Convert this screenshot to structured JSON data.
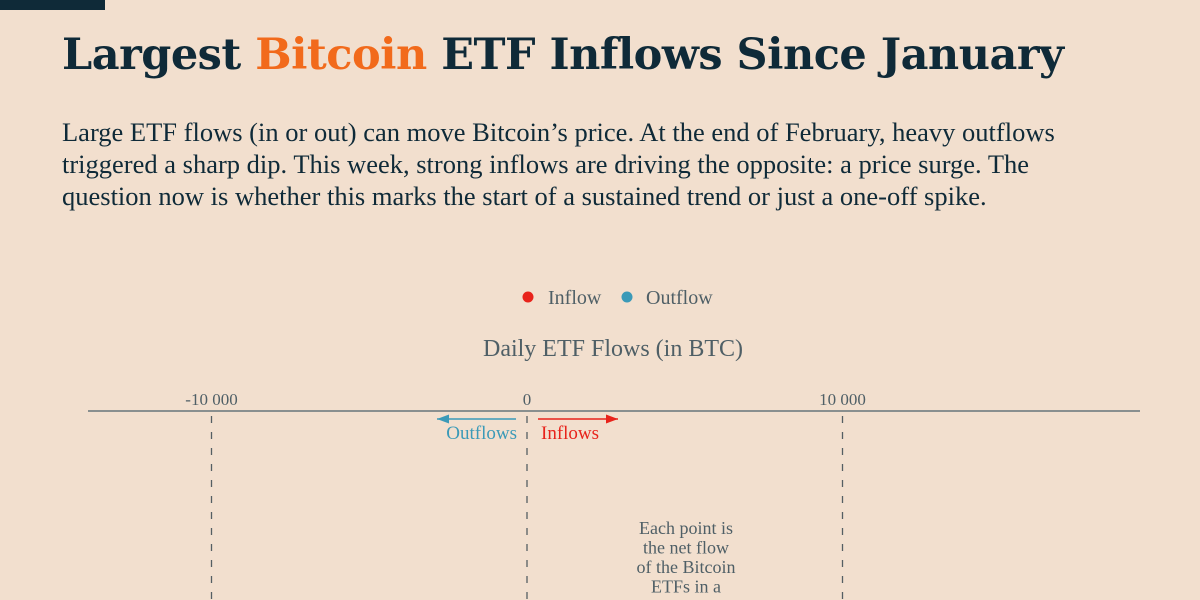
{
  "header": {
    "title_before": "Largest ",
    "title_accent": "Bitcoin",
    "title_after": " ETF Inflows Since January",
    "description": "Large ETF flows (in or out) can move Bitcoin’s price. At the end of February, heavy outflows triggered a sharp dip. This week, strong inflows are driving the opposite: a price surge. The question now is whether this marks the start of a sustained trend or just a one-off spike."
  },
  "colors": {
    "inflow": "#e8231b",
    "outflow": "#3b9ab8",
    "accent": "#f26a1b",
    "text": "#0f2a38"
  },
  "chart_data": {
    "type": "scatter",
    "title": "Daily ETF Flows (in BTC)",
    "legend": [
      {
        "label": "Inflow",
        "color": "#e8231b"
      },
      {
        "label": "Outflow",
        "color": "#3b9ab8"
      }
    ],
    "legend_placement": "top-center",
    "x_ticks": [
      {
        "value": -10000,
        "label": "-10 000"
      },
      {
        "value": 0,
        "label": "0"
      },
      {
        "value": 10000,
        "label": "10 000"
      }
    ],
    "xlim": [
      -14000,
      19500
    ],
    "direction_labels": {
      "outflows": "Outflows",
      "inflows": "Inflows"
    },
    "annotation_lines": [
      "Each point is",
      "the net flow",
      "of the Bitcoin",
      "ETFs in a"
    ],
    "points": []
  }
}
